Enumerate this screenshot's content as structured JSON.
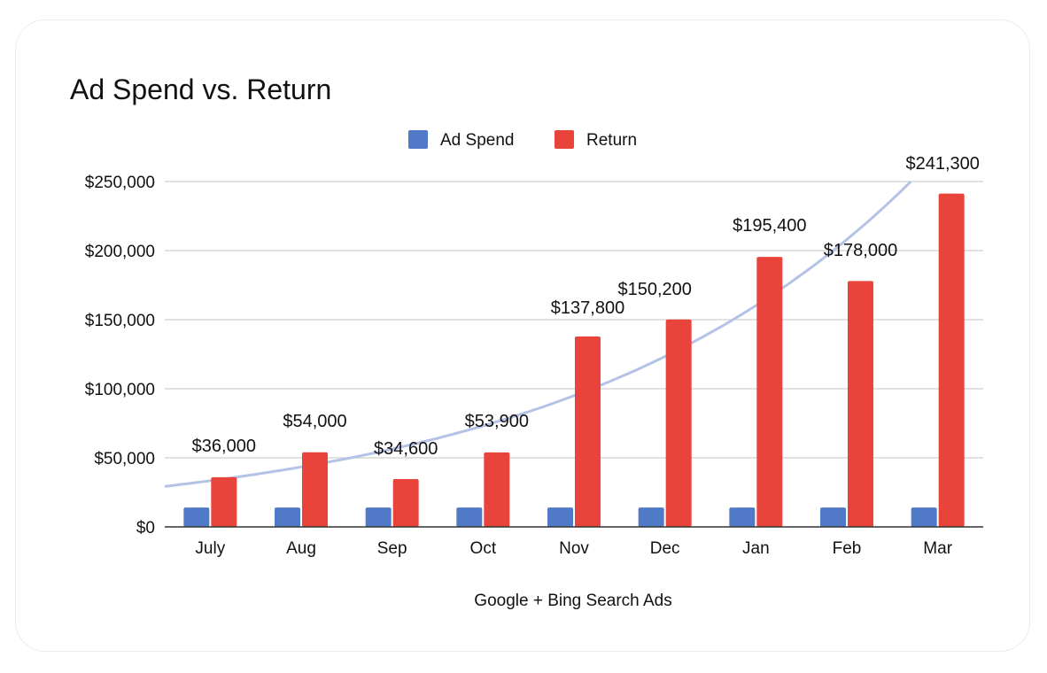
{
  "chart_data": {
    "type": "bar",
    "title": "Ad Spend vs. Return",
    "xlabel": "Google + Bing Search Ads",
    "ylabel": "",
    "ylim": [
      0,
      250000
    ],
    "yticks": [
      0,
      50000,
      100000,
      150000,
      200000,
      250000
    ],
    "ytick_labels": [
      "$0",
      "$50,000",
      "$100,000",
      "$150,000",
      "$200,000",
      "$250,000"
    ],
    "categories": [
      "July",
      "Aug",
      "Sep",
      "Oct",
      "Nov",
      "Dec",
      "Jan",
      "Feb",
      "Mar"
    ],
    "series": [
      {
        "name": "Ad Spend",
        "color": "#5079c8",
        "values": [
          14000,
          14000,
          14000,
          14000,
          14000,
          14000,
          14000,
          14000,
          14000
        ]
      },
      {
        "name": "Return",
        "color": "#e9443b",
        "values": [
          36000,
          54000,
          34600,
          53900,
          137800,
          150200,
          195400,
          178000,
          241300
        ],
        "data_labels": [
          "$36,000",
          "$54,000",
          "$34,600",
          "$53,900",
          "$137,800",
          "$150,200",
          "$195,400",
          "$178,000",
          "$241,300"
        ]
      }
    ],
    "trendline": {
      "type": "exponential",
      "series": "Return",
      "color": "#b4c2e6"
    },
    "legend_position": "top",
    "grid": true
  }
}
